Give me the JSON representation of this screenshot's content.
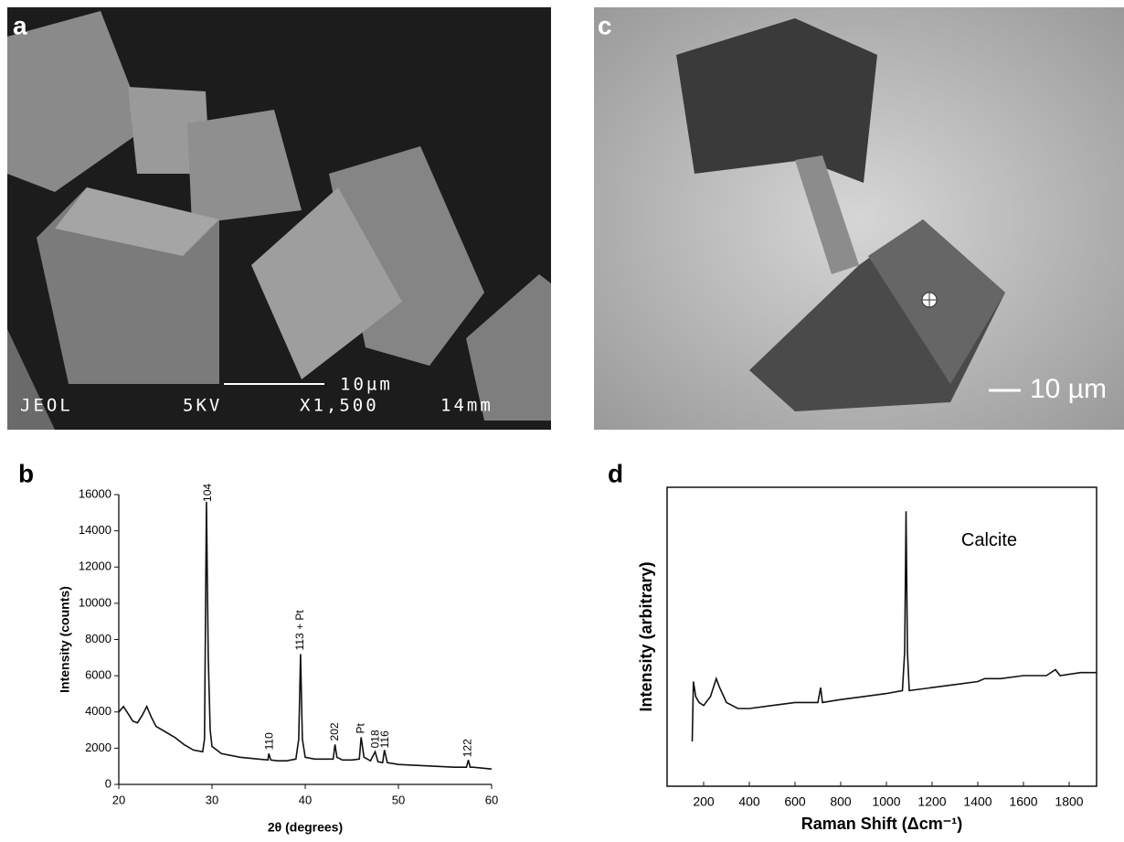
{
  "images": [
    {
      "label": "a",
      "scale_bar": "10µm",
      "info": [
        "JEOL",
        "5KV",
        "X1,500",
        "14mm"
      ]
    },
    {
      "label": "c",
      "scale_bar": "10 µm"
    }
  ],
  "chart_data": [
    {
      "type": "line",
      "label": "b",
      "x_label": "2θ (degrees)",
      "y_label": "Intensity (counts)",
      "color": "#111111",
      "frame": false,
      "xlim": [
        20,
        60
      ],
      "ylim": [
        0,
        16000
      ],
      "xticks": [
        20,
        30,
        40,
        50,
        60
      ],
      "yticks": [
        0,
        2000,
        4000,
        6000,
        8000,
        10000,
        12000,
        14000,
        16000
      ],
      "x": [
        20,
        20.5,
        21,
        21.5,
        22,
        22.5,
        23,
        23.5,
        24,
        25,
        26,
        27,
        28,
        29,
        29.2,
        29.4,
        29.6,
        29.8,
        30,
        31,
        32,
        33,
        34,
        35,
        36,
        36.1,
        36.3,
        37,
        38,
        39,
        39.3,
        39.5,
        39.7,
        40,
        41,
        42,
        43,
        43.2,
        43.4,
        44,
        45,
        45.8,
        46,
        46.3,
        47,
        47.5,
        47.8,
        48.3,
        48.5,
        48.8,
        50,
        52,
        54,
        56,
        57.3,
        57.5,
        57.7,
        58,
        60
      ],
      "values": [
        4000,
        4300,
        3900,
        3500,
        3400,
        3800,
        4300,
        3700,
        3200,
        2900,
        2600,
        2200,
        1900,
        1800,
        2500,
        15600,
        7000,
        3000,
        2100,
        1700,
        1600,
        1500,
        1450,
        1400,
        1350,
        1700,
        1350,
        1300,
        1300,
        1400,
        2500,
        7200,
        2500,
        1500,
        1400,
        1400,
        1400,
        2200,
        1500,
        1350,
        1350,
        1400,
        2600,
        1500,
        1300,
        1800,
        1250,
        1200,
        1900,
        1200,
        1100,
        1050,
        1000,
        950,
        950,
        1350,
        950,
        950,
        850
      ],
      "annotations": [
        {
          "text": "104",
          "x": 29.6,
          "y": 15600
        },
        {
          "text": "113 + Pt",
          "x": 39.5,
          "y": 7400
        },
        {
          "text": "110",
          "x": 36.2,
          "y": 1900
        },
        {
          "text": "202",
          "x": 43.2,
          "y": 2400
        },
        {
          "text": "Pt",
          "x": 46,
          "y": 2800
        },
        {
          "text": "018",
          "x": 47.6,
          "y": 2000
        },
        {
          "text": "116",
          "x": 48.6,
          "y": 2000
        },
        {
          "text": "122",
          "x": 57.5,
          "y": 1500
        }
      ]
    },
    {
      "type": "line",
      "label": "d",
      "x_label": "Raman Shift (Δcm⁻¹)",
      "y_label": "Intensity (arbitrary)",
      "color": "#111111",
      "frame": true,
      "xlim": [
        40,
        1920
      ],
      "ylim": [
        0,
        100
      ],
      "xticks": [
        200,
        400,
        600,
        800,
        1000,
        1200,
        1400,
        1600,
        1800
      ],
      "x": [
        150,
        155,
        165,
        180,
        200,
        230,
        255,
        270,
        300,
        350,
        400,
        500,
        600,
        700,
        712,
        720,
        800,
        900,
        1000,
        1070,
        1080,
        1086,
        1092,
        1100,
        1200,
        1300,
        1400,
        1430,
        1500,
        1600,
        1700,
        1740,
        1760,
        1850,
        1920
      ],
      "values": [
        15,
        35,
        30,
        28,
        27,
        30,
        36,
        33,
        28,
        26,
        26,
        27,
        28,
        28,
        33,
        28,
        29,
        30,
        31,
        32,
        45,
        92,
        45,
        32,
        33,
        34,
        35,
        36,
        36,
        37,
        37,
        39,
        37,
        38,
        38
      ],
      "annotations": [
        {
          "text": "Calcite",
          "x": 1450,
          "y": 82
        }
      ]
    }
  ]
}
